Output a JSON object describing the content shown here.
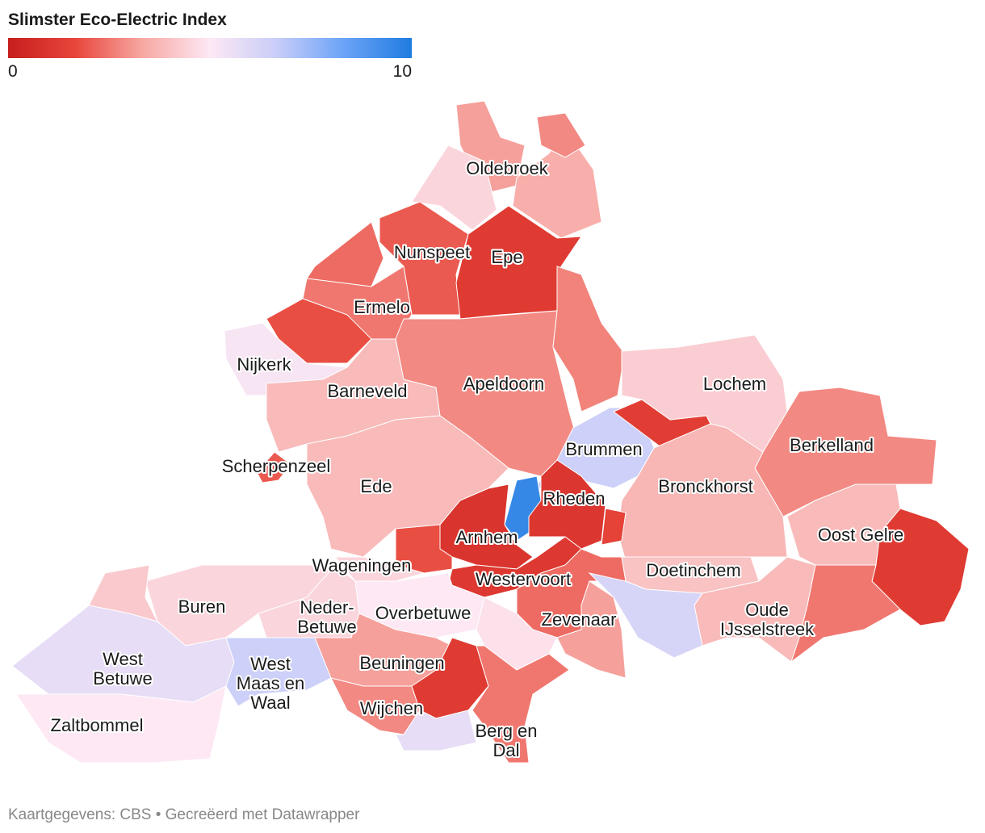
{
  "title": "Slimster Eco-Electric Index",
  "legend": {
    "min": 0,
    "max": 10,
    "colors": [
      "#c71e1d",
      "#e8463b",
      "#f7a8a3",
      "#fde8f4",
      "#c8cdf8",
      "#6aa3f7",
      "#1f7ce0"
    ]
  },
  "regions": [
    {
      "value": 3.2
    },
    {
      "label": [
        "Oldebroek"
      ],
      "value": 4.5
    },
    {
      "value": 3.5
    },
    {
      "value": 2.8
    },
    {
      "label": [
        "Nunspeet"
      ],
      "value": 2.0
    },
    {
      "value": 2.3
    },
    {
      "label": [
        "Epe"
      ],
      "value": 1.2
    },
    {
      "label": [
        "Ermelo"
      ],
      "value": 2.5
    },
    {
      "value": 1.8
    },
    {
      "label": [
        "Nijkerk"
      ],
      "value": 5.2
    },
    {
      "label": [
        "Barneveld"
      ],
      "value": 3.8
    },
    {
      "label": [
        "Apeldoorn"
      ],
      "value": 2.8
    },
    {
      "value": 2.7
    },
    {
      "label": [
        "Scherpenzeel"
      ],
      "value": 2.0
    },
    {
      "label": [
        "Ede"
      ],
      "value": 3.8
    },
    {
      "label": [
        "Brummen"
      ],
      "value": 6.5
    },
    {
      "value": 1.3
    },
    {
      "label": [
        "Lochem"
      ],
      "value": 4.3
    },
    {
      "label": [
        "Berkelland"
      ],
      "value": 2.8
    },
    {
      "label": [
        "Bronckhorst"
      ],
      "value": 3.7
    },
    {
      "value": 9.5
    },
    {
      "label": [
        "Rheden"
      ],
      "value": 1.0
    },
    {
      "value": 1.5
    },
    {
      "label": [
        "Arnhem"
      ],
      "value": 0.9
    },
    {
      "value": 1.8
    },
    {
      "label": [
        "Westervoort"
      ],
      "value": 1.1
    },
    {
      "label": [
        "Wageningen"
      ],
      "value": 4.5
    },
    {
      "label": [
        "Overbetuwe"
      ],
      "value": 5.0
    },
    {
      "label": [
        "Zevenaar"
      ],
      "value": 2.3
    },
    {
      "value": 4.8
    },
    {
      "value": 3.2
    },
    {
      "label": [
        "Doetinchem"
      ],
      "value": 4.0
    },
    {
      "value": 6.2
    },
    {
      "label": [
        "Oost Gelre"
      ],
      "value": 3.8
    },
    {
      "value": 1.2
    },
    {
      "label": [
        "Oude",
        "IJsselstreek"
      ],
      "value": 3.8
    },
    {
      "value": 2.5
    },
    {
      "label": [
        "Neder-",
        "Betuwe"
      ],
      "value": 4.5
    },
    {
      "label": [
        "Buren"
      ],
      "value": 4.5
    },
    {
      "value": 4.2
    },
    {
      "label": [
        "West",
        "Betuwe"
      ],
      "value": 5.7
    },
    {
      "label": [
        "Zaltbommel"
      ],
      "value": 5.0
    },
    {
      "label": [
        "West",
        "Maas en",
        "Waal"
      ],
      "value": 6.5
    },
    {
      "label": [
        "Beuningen"
      ],
      "value": 3.2
    },
    {
      "label": [
        "Wijchen"
      ],
      "value": 2.8
    },
    {
      "value": 1.2
    },
    {
      "label": [
        "Berg en",
        "Dal"
      ],
      "value": 2.5
    },
    {
      "value": 5.7
    }
  ],
  "source": "Kaartgegevens: CBS • Gecreëerd met Datawrapper"
}
